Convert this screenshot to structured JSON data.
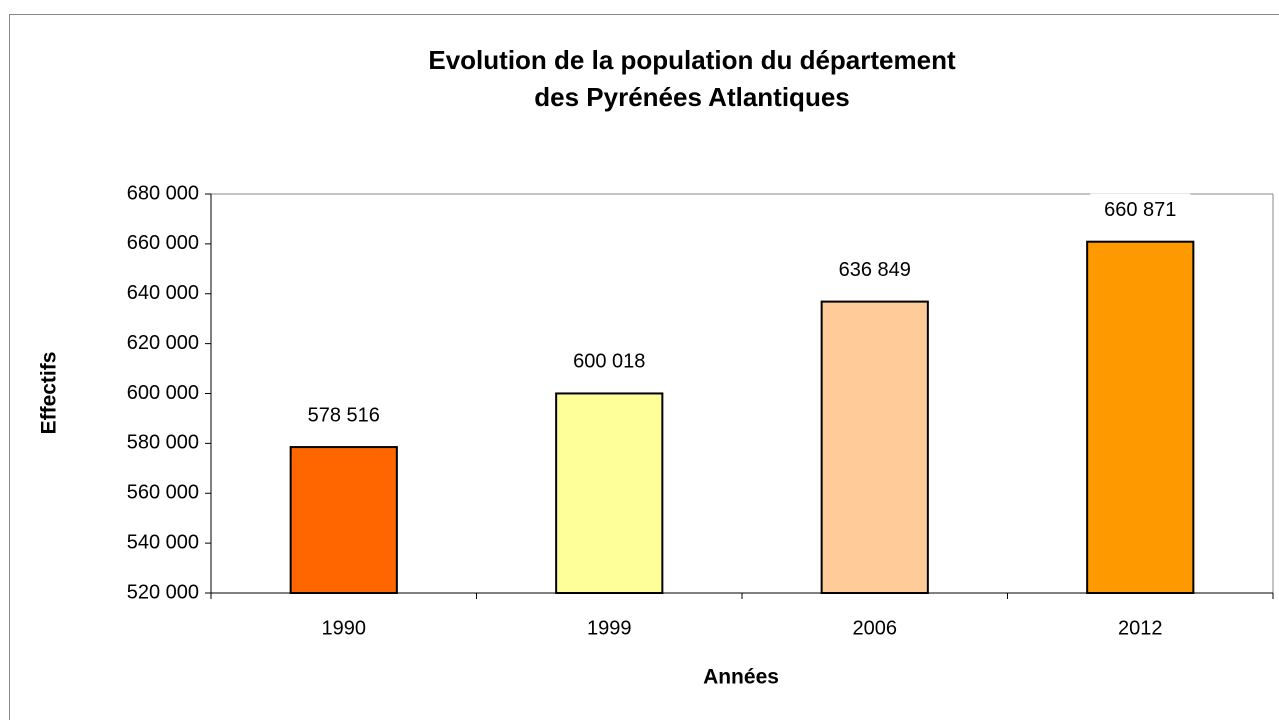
{
  "chart_data": {
    "type": "bar",
    "title": [
      "Evolution de la population du département",
      "des Pyrénées Atlantiques"
    ],
    "xlabel": "Années",
    "ylabel": "Effectifs",
    "categories": [
      "1990",
      "1999",
      "2006",
      "2012"
    ],
    "values": [
      578516,
      600018,
      636849,
      660871
    ],
    "value_labels": [
      "578 516",
      "600 018",
      "636 849",
      "660 871"
    ],
    "colors": [
      "#ff6600",
      "#ffff99",
      "#ffcc99",
      "#ff9900"
    ],
    "ylim": [
      520000,
      680000
    ],
    "yticks": [
      {
        "value": 520000,
        "label": "520 000"
      },
      {
        "value": 540000,
        "label": "540 000"
      },
      {
        "value": 560000,
        "label": "560 000"
      },
      {
        "value": 580000,
        "label": "580 000"
      },
      {
        "value": 600000,
        "label": "600 000"
      },
      {
        "value": 620000,
        "label": "620 000"
      },
      {
        "value": 640000,
        "label": "640 000"
      },
      {
        "value": 660000,
        "label": "660 000"
      },
      {
        "value": 680000,
        "label": "680 000"
      }
    ],
    "grid": false
  }
}
